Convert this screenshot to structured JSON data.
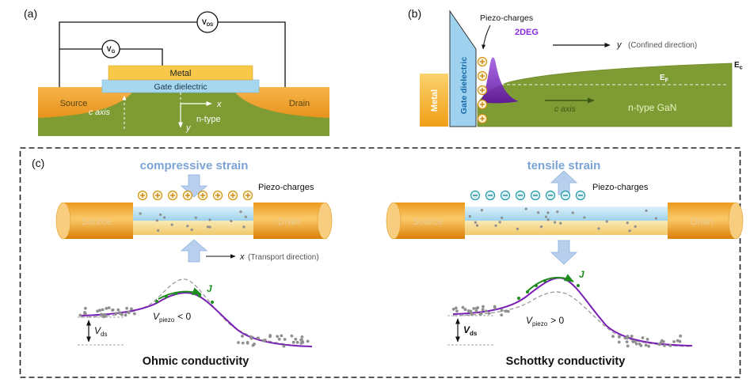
{
  "panel_a": {
    "label": "(a)",
    "vg": {
      "base": "V",
      "sub": "G"
    },
    "vds": {
      "base": "V",
      "sub": "DS"
    },
    "metal": "Metal",
    "gate_dielectric": "Gate dielectric",
    "source": "Source",
    "drain": "Drain",
    "c_axis": "c axis",
    "x": "x",
    "y": "y",
    "n_type": "n-type"
  },
  "panel_b": {
    "label": "(b)",
    "piezo_charges": "Piezo-charges",
    "two_deg": "2DEG",
    "y": "y",
    "confined": "(Confined direction)",
    "ec": {
      "base": "E",
      "sub": "c"
    },
    "ef": {
      "base": "E",
      "sub": "F"
    },
    "metal": "Metal",
    "gate_dielectric": "Gate dielectric",
    "c_axis": "c axis",
    "n_type_gan": "n-type GaN"
  },
  "panel_c": {
    "label": "(c)",
    "left": {
      "strain": "compressive strain",
      "piezo_charges": "Piezo-charges",
      "source": "Source",
      "drain": "Drain",
      "x": "x",
      "transport": "(Transport direction)",
      "j": "J",
      "vds": {
        "base": "V",
        "sub": "ds"
      },
      "vpiezo": {
        "base": "V",
        "sub": "piezo",
        "rel": "< 0"
      },
      "conductivity": "Ohmic conductivity"
    },
    "right": {
      "strain": "tensile strain",
      "piezo_charges": "Piezo-charges",
      "source": "Source",
      "drain": "Drain",
      "j": "J",
      "vds": {
        "base": "V",
        "sub": "ds"
      },
      "vpiezo": {
        "base": "V",
        "sub": "piezo",
        "rel": "> 0"
      },
      "conductivity": "Schottky conductivity"
    }
  },
  "colors": {
    "substrate_green": "#7e9b34",
    "metal_yellow": "#f8c84b",
    "dielectric_blue": "#a6d7ef",
    "contact_orange": "#f0a131",
    "two_deg_purple": "#7a1fb5",
    "strain_blue": "#7aa3d4",
    "current_green": "#1f8c1f",
    "positive_charge": "#d3920f",
    "negative_charge": "#1f98a8"
  }
}
